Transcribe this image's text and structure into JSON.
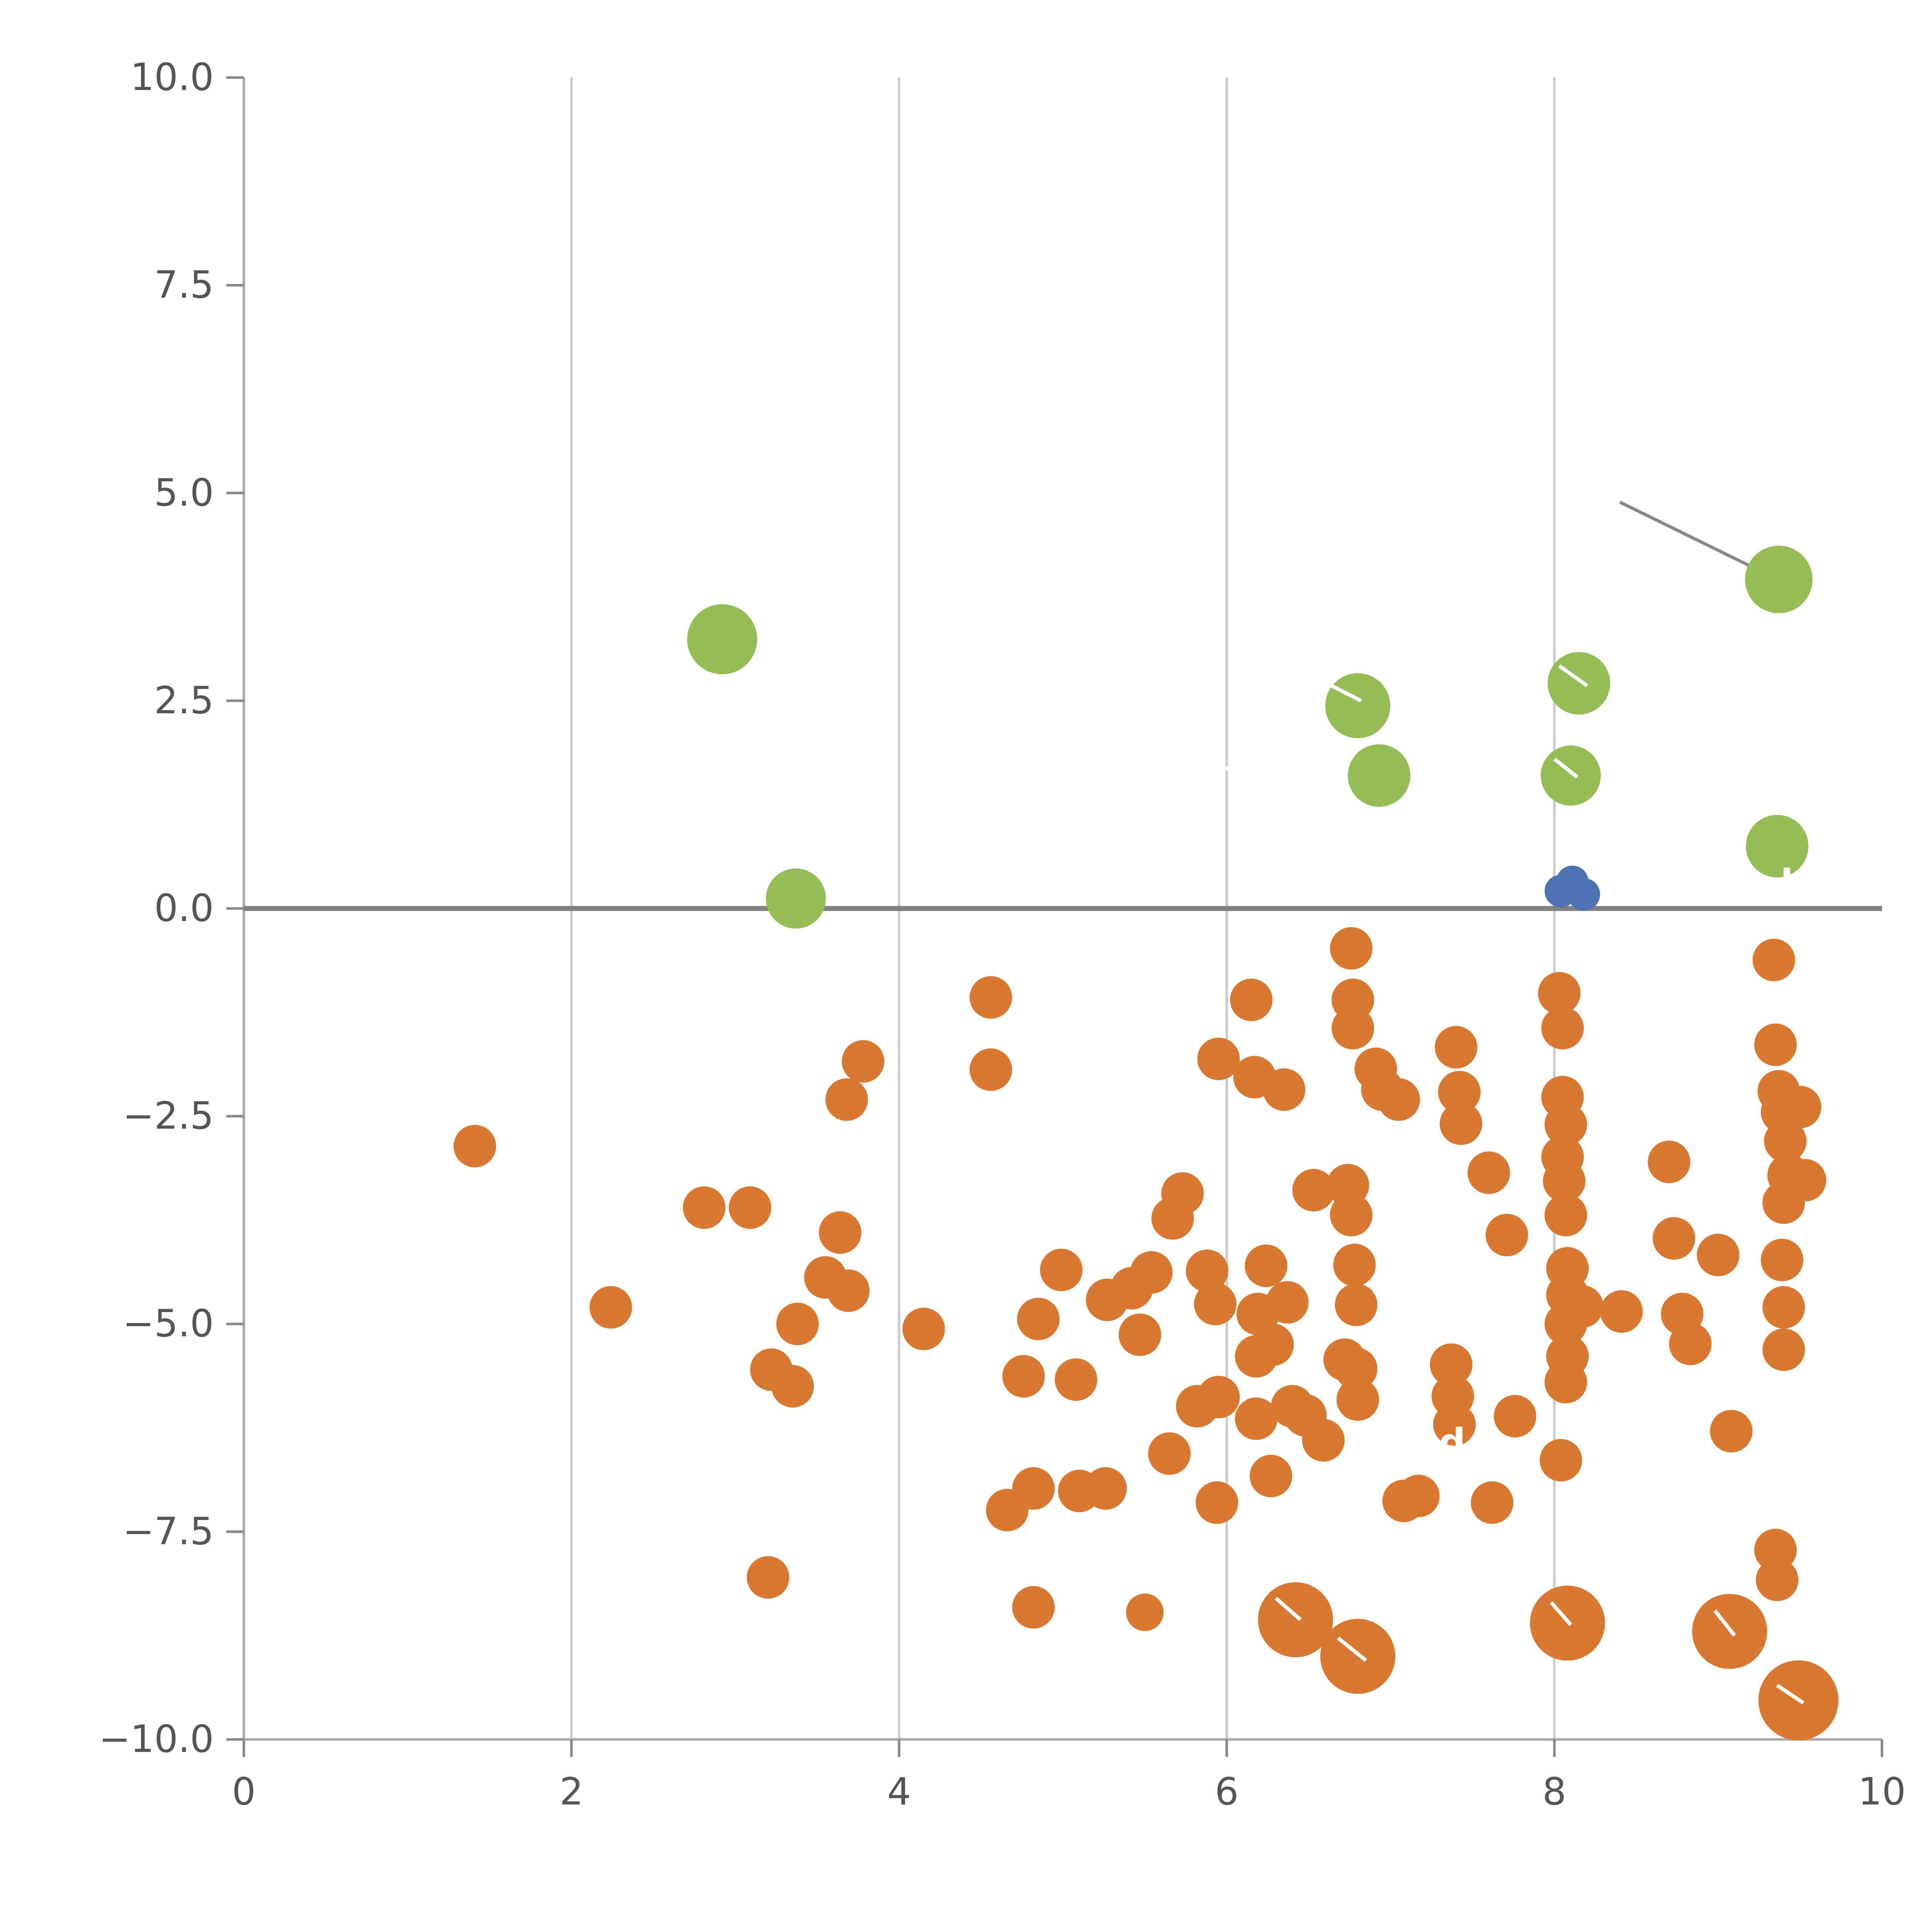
{
  "figure": {
    "background_color": "#ffffff",
    "title": "",
    "xlabel": "",
    "ylabel": ""
  },
  "axes": {
    "x": {
      "range": [
        0,
        10
      ],
      "tick_values": [
        0,
        2,
        4,
        6,
        8,
        10
      ],
      "tick_labels": [
        "0",
        "2",
        "4",
        "6",
        "8",
        "10"
      ],
      "gridline_values": [
        2,
        4,
        6,
        8
      ]
    },
    "y": {
      "range": [
        -10,
        10
      ],
      "tick_values": [
        10.0,
        7.5,
        5.0,
        2.5,
        0.0,
        -2.5,
        -5.0,
        -7.5,
        -10.0
      ],
      "tick_labels": [
        "10.0",
        "7.5",
        "5.0",
        "2.5",
        "0.0",
        "−2.5",
        "−5.0",
        "−7.5",
        "−10.0"
      ]
    },
    "colors": {
      "gridline": "#cccccc",
      "spine": "#aaaaaa",
      "tick": "#888888",
      "tick_text": "#555555",
      "zero_line": "#808080"
    }
  },
  "chart_data": {
    "type": "scatter",
    "title": "",
    "xlabel": "",
    "ylabel": "",
    "xlim": [
      0,
      10
    ],
    "ylim": [
      -10,
      10
    ],
    "grid": "vertical-only",
    "legend": "none",
    "zero_line_y": 0,
    "series": [
      {
        "name": "orange-points",
        "color": "#D9782E",
        "points": [
          [
            1.41,
            -2.86,
            17
          ],
          [
            2.24,
            -4.8,
            17
          ],
          [
            2.81,
            -3.6,
            17
          ],
          [
            3.09,
            -3.6,
            17
          ],
          [
            3.22,
            -5.55,
            17
          ],
          [
            3.35,
            -5.75,
            17
          ],
          [
            3.38,
            -5.0,
            17
          ],
          [
            3.2,
            -8.05,
            17
          ],
          [
            3.55,
            -4.44,
            17
          ],
          [
            3.64,
            -3.9,
            17
          ],
          [
            3.69,
            -4.6,
            17
          ],
          [
            3.68,
            -2.3,
            17
          ],
          [
            3.78,
            -1.84,
            17
          ],
          [
            4.15,
            -5.06,
            17
          ],
          [
            4.56,
            -1.07,
            17
          ],
          [
            4.56,
            -1.94,
            17
          ],
          [
            4.66,
            -7.24,
            17
          ],
          [
            4.76,
            -5.63,
            17
          ],
          [
            4.82,
            -6.98,
            17
          ],
          [
            4.85,
            -4.94,
            17
          ],
          [
            4.82,
            -8.41,
            17
          ],
          [
            4.99,
            -4.35,
            17
          ],
          [
            5.08,
            -5.67,
            17
          ],
          [
            5.1,
            -7.01,
            17
          ],
          [
            5.26,
            -6.98,
            17
          ],
          [
            5.27,
            -4.71,
            17
          ],
          [
            5.42,
            -4.57,
            17
          ],
          [
            5.47,
            -5.13,
            17
          ],
          [
            5.5,
            -8.47,
            15
          ],
          [
            5.54,
            -4.38,
            17
          ],
          [
            5.65,
            -6.56,
            17
          ],
          [
            5.67,
            -3.73,
            17
          ],
          [
            5.73,
            -3.43,
            17
          ],
          [
            5.82,
            -5.99,
            17
          ],
          [
            5.88,
            -4.36,
            17
          ],
          [
            5.93,
            -4.76,
            17
          ],
          [
            5.95,
            -1.81,
            17
          ],
          [
            5.95,
            -5.88,
            17
          ],
          [
            5.94,
            -7.15,
            17
          ],
          [
            6.15,
            -1.1,
            17
          ],
          [
            6.17,
            -2.03,
            17
          ],
          [
            6.19,
            -4.88,
            17
          ],
          [
            6.18,
            -5.39,
            17
          ],
          [
            6.18,
            -6.14,
            17
          ],
          [
            6.24,
            -4.3,
            17
          ],
          [
            6.28,
            -5.25,
            17
          ],
          [
            6.27,
            -6.83,
            17
          ],
          [
            6.35,
            -2.18,
            17
          ],
          [
            6.37,
            -4.74,
            17
          ],
          [
            6.4,
            -5.99,
            17
          ],
          [
            6.42,
            -8.56,
            30
          ],
          [
            6.48,
            -6.1,
            17
          ],
          [
            6.53,
            -3.39,
            17
          ],
          [
            6.59,
            -6.4,
            17
          ],
          [
            6.72,
            -5.43,
            17
          ],
          [
            6.76,
            -0.48,
            17
          ],
          [
            6.77,
            -1.1,
            17
          ],
          [
            6.77,
            -1.44,
            17
          ],
          [
            6.74,
            -3.33,
            17
          ],
          [
            6.76,
            -3.69,
            17
          ],
          [
            6.78,
            -4.29,
            17
          ],
          [
            6.79,
            -4.77,
            17
          ],
          [
            6.79,
            -5.54,
            17
          ],
          [
            6.8,
            -5.91,
            17
          ],
          [
            6.8,
            -9.0,
            30
          ],
          [
            6.91,
            -1.93,
            17
          ],
          [
            6.95,
            -2.18,
            17
          ],
          [
            7.05,
            -2.3,
            17
          ],
          [
            7.08,
            -7.13,
            17
          ],
          [
            7.17,
            -7.07,
            17
          ],
          [
            7.37,
            -5.49,
            17
          ],
          [
            7.38,
            -5.87,
            17
          ],
          [
            7.39,
            -6.21,
            17
          ],
          [
            7.4,
            -1.67,
            17
          ],
          [
            7.42,
            -2.21,
            17
          ],
          [
            7.43,
            -2.59,
            17
          ],
          [
            7.6,
            -3.18,
            17
          ],
          [
            7.62,
            -7.15,
            17
          ],
          [
            7.71,
            -3.93,
            17
          ],
          [
            7.76,
            -6.11,
            17
          ],
          [
            8.03,
            -1.02,
            17
          ],
          [
            8.05,
            -1.44,
            17
          ],
          [
            8.05,
            -2.27,
            17
          ],
          [
            8.07,
            -2.6,
            17
          ],
          [
            8.05,
            -2.99,
            17
          ],
          [
            8.06,
            -3.28,
            17
          ],
          [
            8.07,
            -3.69,
            17
          ],
          [
            8.08,
            -4.33,
            17
          ],
          [
            8.08,
            -4.65,
            17
          ],
          [
            8.07,
            -5.0,
            17
          ],
          [
            8.08,
            -5.39,
            17
          ],
          [
            8.07,
            -5.7,
            17
          ],
          [
            8.04,
            -6.64,
            17
          ],
          [
            8.08,
            -8.6,
            30
          ],
          [
            8.17,
            -4.79,
            17
          ],
          [
            8.41,
            -4.85,
            17
          ],
          [
            8.7,
            -3.05,
            17
          ],
          [
            8.73,
            -3.97,
            17
          ],
          [
            8.78,
            -4.88,
            17
          ],
          [
            8.83,
            -5.24,
            17
          ],
          [
            9.0,
            -4.17,
            17
          ],
          [
            9.08,
            -6.29,
            17
          ],
          [
            9.07,
            -8.7,
            30
          ],
          [
            9.34,
            -0.62,
            17
          ],
          [
            9.35,
            -1.64,
            17
          ],
          [
            9.37,
            -2.2,
            17
          ],
          [
            9.39,
            -2.45,
            17
          ],
          [
            9.41,
            -2.8,
            17
          ],
          [
            9.43,
            -3.21,
            17
          ],
          [
            9.4,
            -3.54,
            17
          ],
          [
            9.39,
            -4.23,
            17
          ],
          [
            9.4,
            -4.8,
            17
          ],
          [
            9.4,
            -5.31,
            17
          ],
          [
            9.5,
            -2.39,
            17
          ],
          [
            9.53,
            -3.27,
            17
          ],
          [
            9.35,
            -7.72,
            17
          ],
          [
            9.36,
            -8.08,
            17
          ],
          [
            9.49,
            -9.53,
            32
          ]
        ]
      },
      {
        "name": "green-points",
        "color": "#94BE55",
        "points": [
          [
            2.92,
            3.24,
            28
          ],
          [
            3.37,
            0.12,
            24
          ],
          [
            6.8,
            2.44,
            26
          ],
          [
            6.93,
            1.6,
            25
          ],
          [
            8.15,
            2.71,
            25
          ],
          [
            8.1,
            1.6,
            24
          ],
          [
            9.37,
            3.96,
            27
          ],
          [
            9.36,
            0.75,
            25
          ]
        ]
      },
      {
        "name": "blue-points",
        "color": "#4C72B0",
        "points": [
          [
            8.04,
            0.21,
            13
          ],
          [
            8.11,
            0.32,
            13
          ],
          [
            8.18,
            0.17,
            13
          ]
        ]
      }
    ],
    "annotations": {
      "leader_line": {
        "x1": 8.4,
        "y1": 4.89,
        "x2": 9.29,
        "y2": 4.03,
        "color": "#888888",
        "width": 2.5
      },
      "white_lines": [
        [
          6.6,
          2.72,
          6.82,
          2.5
        ],
        [
          8.03,
          2.92,
          8.2,
          2.68
        ],
        [
          8.0,
          1.8,
          8.14,
          1.58
        ],
        [
          5.98,
          1.7,
          6.08,
          1.62
        ],
        [
          6.3,
          -8.3,
          6.45,
          -8.56
        ],
        [
          6.68,
          -8.78,
          6.85,
          -9.05
        ],
        [
          7.98,
          -8.35,
          8.1,
          -8.62
        ],
        [
          8.98,
          -8.45,
          9.1,
          -8.75
        ],
        [
          9.36,
          -9.35,
          9.52,
          -9.56
        ]
      ],
      "white_labels": [
        {
          "text": "ln",
          "x": 9.38,
          "y": 0.15,
          "size": 30
        },
        {
          "text": "med",
          "x": 6.9,
          "y": -6.58,
          "size": 30
        }
      ]
    }
  }
}
